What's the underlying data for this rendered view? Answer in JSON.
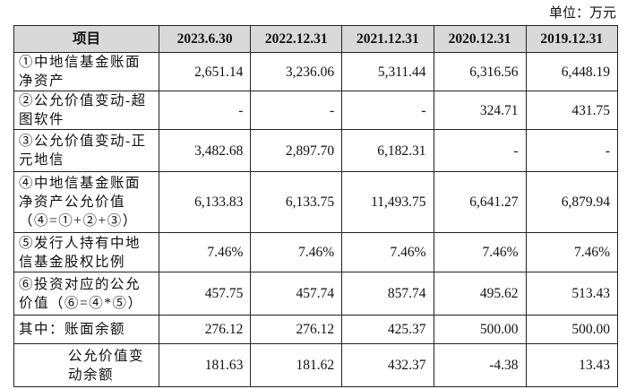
{
  "unit": "单位：万元",
  "table": {
    "header": [
      "项目",
      "2023.6.30",
      "2022.12.31",
      "2021.12.31",
      "2020.12.31",
      "2019.12.31"
    ],
    "rows": [
      {
        "label": [
          "①中地信基金账面",
          "净资产"
        ],
        "cells": [
          "2,651.14",
          "3,236.06",
          "5,311.44",
          "6,316.56",
          "6,448.19"
        ]
      },
      {
        "label": [
          "②公允价值变动-超",
          "图软件"
        ],
        "cells": [
          "-",
          "-",
          "-",
          "324.71",
          "431.75"
        ]
      },
      {
        "label": [
          "③公允价值变动-正",
          "元地信"
        ],
        "cells": [
          "3,482.68",
          "2,897.70",
          "6,182.31",
          "-",
          "-"
        ]
      },
      {
        "label": [
          "④中地信基金账面",
          "净资产公允价值",
          "（④=①+②+③）"
        ],
        "cells": [
          "6,133.83",
          "6,133.75",
          "11,493.75",
          "6,641.27",
          "6,879.94"
        ]
      },
      {
        "label": [
          "⑤发行人持有中地",
          "信基金股权比例"
        ],
        "cells": [
          "7.46%",
          "7.46%",
          "7.46%",
          "7.46%",
          "7.46%"
        ]
      },
      {
        "label": [
          "⑥投资对应的公允",
          "价值（⑥=④*⑤）"
        ],
        "cells": [
          "457.75",
          "457.74",
          "857.74",
          "495.62",
          "513.43"
        ]
      },
      {
        "label": [
          "其中：账面余额"
        ],
        "cells": [
          "276.12",
          "276.12",
          "425.37",
          "500.00",
          "500.00"
        ]
      },
      {
        "label": [
          "公允价值变",
          "动余额"
        ],
        "cells": [
          "181.63",
          "181.62",
          "432.37",
          "-4.38",
          "13.43"
        ]
      }
    ]
  }
}
